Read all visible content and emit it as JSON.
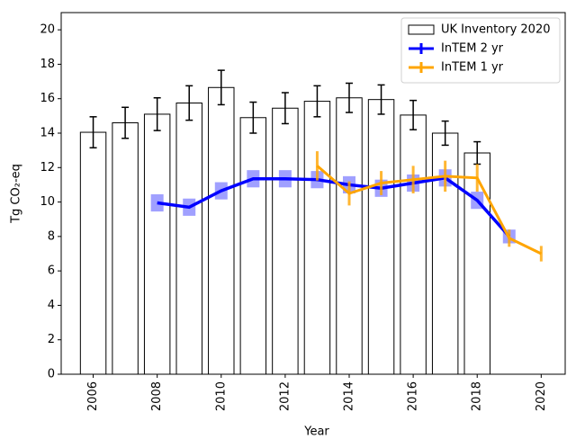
{
  "chart_data": {
    "type": "bar",
    "xlabel": "Year",
    "ylabel": "Tg CO₂-eq",
    "xlim": [
      2005,
      2020.75
    ],
    "ylim": [
      0,
      21
    ],
    "xticks": [
      2006,
      2008,
      2010,
      2012,
      2014,
      2016,
      2018,
      2020
    ],
    "yticks": [
      0,
      2,
      4,
      6,
      8,
      10,
      12,
      14,
      16,
      18,
      20
    ],
    "legend": "upper right",
    "series": [
      {
        "name": "UK Inventory 2020",
        "kind": "bar",
        "color": "#ffffff",
        "edgecolor": "#000000",
        "x": [
          2006,
          2007,
          2008,
          2009,
          2010,
          2011,
          2012,
          2013,
          2014,
          2015,
          2016,
          2017,
          2018
        ],
        "values": [
          14.05,
          14.6,
          15.1,
          15.75,
          16.65,
          14.9,
          15.45,
          15.85,
          16.05,
          15.95,
          15.05,
          14.0,
          12.85
        ],
        "errors": [
          0.9,
          0.9,
          0.95,
          1.0,
          1.0,
          0.9,
          0.9,
          0.9,
          0.85,
          0.85,
          0.85,
          0.7,
          0.65
        ]
      },
      {
        "name": "InTEM 2 yr",
        "kind": "line",
        "color": "#0000ff",
        "errcolor": "#8080ff",
        "x": [
          2008,
          2009,
          2010,
          2011,
          2012,
          2013,
          2014,
          2015,
          2016,
          2017,
          2018,
          2019
        ],
        "values": [
          9.95,
          9.7,
          10.65,
          11.35,
          11.35,
          11.3,
          11.0,
          10.8,
          11.1,
          11.4,
          10.1,
          8.0
        ],
        "errors": [
          0.5,
          0.5,
          0.5,
          0.5,
          0.5,
          0.5,
          0.5,
          0.5,
          0.5,
          0.5,
          0.5,
          0.4
        ]
      },
      {
        "name": "InTEM 1 yr",
        "kind": "line",
        "color": "#ffa500",
        "errcolor": "#ffa500",
        "x": [
          2013,
          2014,
          2015,
          2016,
          2017,
          2018,
          2019,
          2020
        ],
        "values": [
          12.1,
          10.5,
          11.1,
          11.3,
          11.5,
          11.4,
          7.9,
          7.0
        ],
        "errors": [
          0.85,
          0.7,
          0.7,
          0.8,
          0.9,
          0.8,
          0.5,
          0.45
        ]
      }
    ]
  }
}
